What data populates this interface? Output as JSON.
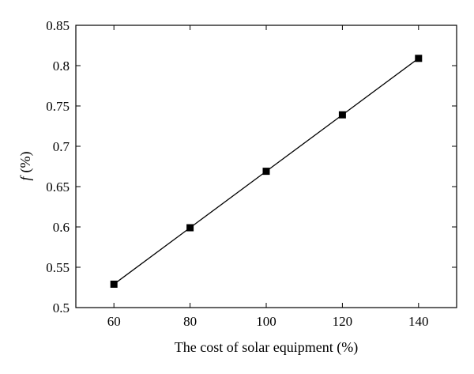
{
  "chart_data": {
    "type": "line",
    "title": "",
    "xlabel": "The cost of solar equipment (%)",
    "ylabel": {
      "symbol": "f",
      "unit": "(%)"
    },
    "xlim": [
      50,
      150
    ],
    "ylim": [
      0.5,
      0.85
    ],
    "xticks": [
      "60",
      "80",
      "100",
      "120",
      "140"
    ],
    "yticks": [
      "0.5",
      "0.55",
      "0.6",
      "0.65",
      "0.7",
      "0.75",
      "0.8",
      "0.85"
    ],
    "grid": false,
    "legend": "none",
    "series": [
      {
        "marker": "square",
        "color": "#000000",
        "x": [
          60,
          80,
          100,
          120,
          140
        ],
        "y": [
          0.529,
          0.599,
          0.669,
          0.739,
          0.809
        ]
      }
    ]
  }
}
